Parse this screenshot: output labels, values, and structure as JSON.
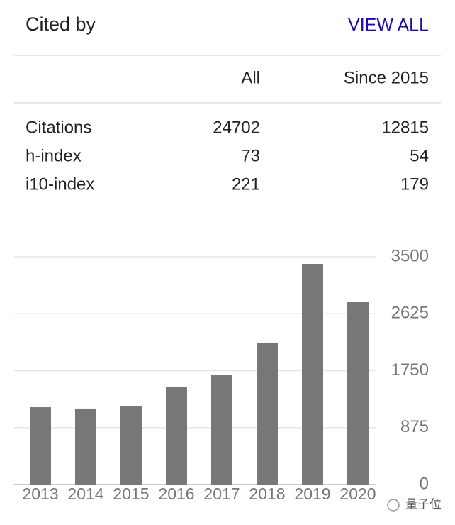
{
  "header": {
    "title": "Cited by",
    "link": "VIEW ALL"
  },
  "table": {
    "columns": [
      "All",
      "Since 2015"
    ],
    "rows": [
      [
        "Citations",
        24702,
        12815
      ],
      [
        "h-index",
        73,
        54
      ],
      [
        "i10-index",
        221,
        179
      ]
    ]
  },
  "chart_data": {
    "type": "bar",
    "categories": [
      "2013",
      "2014",
      "2015",
      "2016",
      "2017",
      "2018",
      "2019",
      "2020"
    ],
    "values": [
      1188,
      1167,
      1210,
      1494,
      1690,
      2170,
      3391,
      2802
    ],
    "color": "#777777",
    "ylim": [
      0,
      3500
    ],
    "yticks": [
      0,
      875,
      1750,
      2625,
      3500
    ],
    "grid": true
  },
  "watermark": "量子位"
}
